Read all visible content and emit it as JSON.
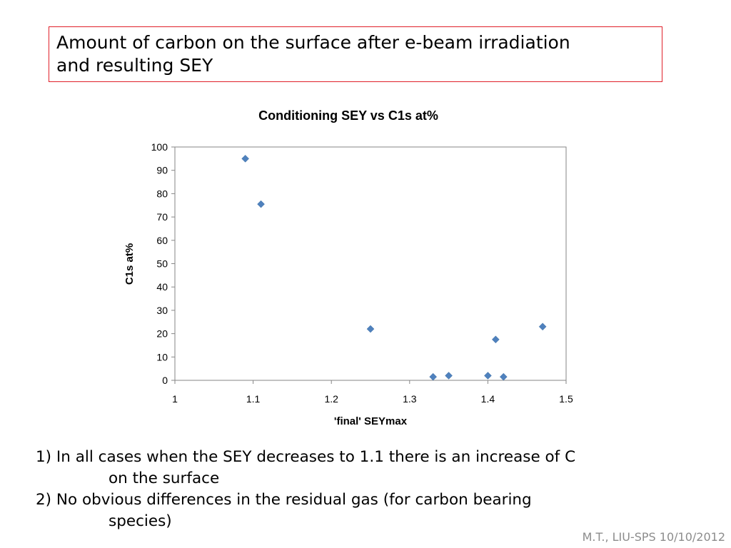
{
  "slide": {
    "title_line1": "Amount of carbon on the surface after e-beam irradiation",
    "title_line2": "and resulting SEY",
    "bullet1_line1": "1) In all cases when the SEY decreases to 1.1 there is an increase of C",
    "bullet1_line2": "on the surface",
    "bullet2_line1": "2) No obvious differences in the residual gas (for carbon bearing",
    "bullet2_line2": "species)",
    "footer": "M.T., LIU-SPS 10/10/2012",
    "accent_color": "#e0202a"
  },
  "chart_data": {
    "type": "scatter",
    "title": "Conditioning SEY vs C1s at%",
    "xlabel": "'final' SEYmax",
    "ylabel": "C1s at%",
    "xlim": [
      1,
      1.5
    ],
    "ylim": [
      0,
      100
    ],
    "xticks": [
      "1",
      "1.1",
      "1.2",
      "1.3",
      "1.4",
      "1.5"
    ],
    "yticks": [
      "0",
      "10",
      "20",
      "30",
      "40",
      "50",
      "60",
      "70",
      "80",
      "90",
      "100"
    ],
    "grid": false,
    "marker": "diamond",
    "marker_color": "#4f81bd",
    "points": [
      {
        "x": 1.09,
        "y": 95
      },
      {
        "x": 1.11,
        "y": 75.5
      },
      {
        "x": 1.25,
        "y": 22
      },
      {
        "x": 1.33,
        "y": 1.5
      },
      {
        "x": 1.35,
        "y": 2
      },
      {
        "x": 1.4,
        "y": 2
      },
      {
        "x": 1.41,
        "y": 17.5
      },
      {
        "x": 1.42,
        "y": 1.5
      },
      {
        "x": 1.47,
        "y": 23
      }
    ]
  }
}
